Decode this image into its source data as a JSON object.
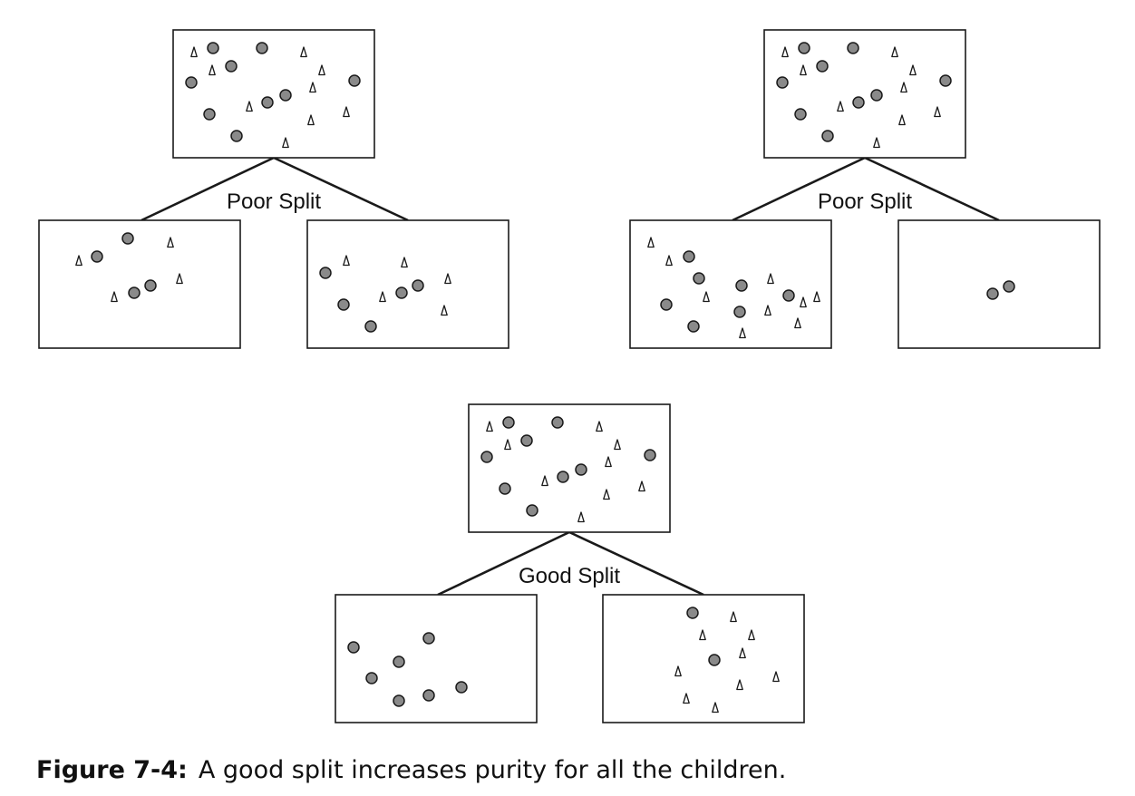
{
  "figure": {
    "colors": {
      "ink": "#1a1a1a",
      "circle_fill": "#8a8a8a",
      "triangle_fill": "#ffffff",
      "box_fill": "#ffffff"
    },
    "symbols": {
      "circle": "circle",
      "triangle": "triangle"
    }
  },
  "splits": [
    {
      "label": "Poor Split"
    },
    {
      "label": "Poor Split"
    },
    {
      "label": "Good Split"
    }
  ],
  "caption": {
    "figure_number": "Figure 7-4:",
    "text": "A good split increases purity for all the children."
  }
}
